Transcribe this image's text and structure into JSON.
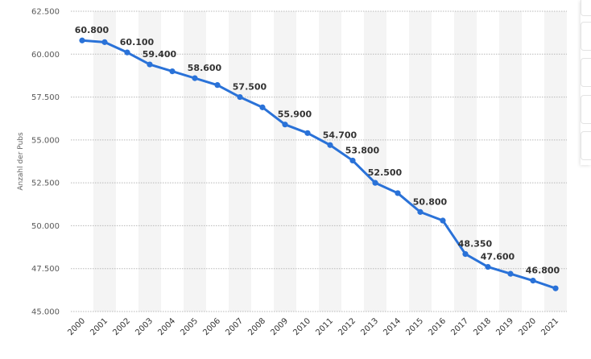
{
  "chart_data": {
    "type": "line",
    "ylabel": "Anzahl der Pubs",
    "xlabel": "",
    "ylim": [
      45000,
      62500
    ],
    "yticks": [
      45000,
      47500,
      50000,
      52500,
      55000,
      57500,
      60000,
      62500
    ],
    "ytick_labels": [
      "45.000",
      "47.500",
      "50.000",
      "52.500",
      "55.000",
      "57.500",
      "60.000",
      "62.500"
    ],
    "categories": [
      "2000",
      "2001",
      "2002",
      "2003",
      "2004",
      "2005",
      "2006",
      "2007",
      "2008",
      "2009",
      "2010",
      "2011",
      "2012",
      "2013",
      "2014",
      "2015",
      "2016",
      "2017",
      "2018",
      "2019",
      "2020",
      "2021"
    ],
    "values": [
      60800,
      60700,
      60100,
      59400,
      59000,
      58600,
      58200,
      57500,
      56900,
      55900,
      55400,
      54700,
      53800,
      52500,
      51900,
      50800,
      50300,
      48350,
      47600,
      47200,
      46800,
      46350
    ],
    "data_labels": [
      "60.800",
      null,
      "60.100",
      "59.400",
      null,
      "58.600",
      null,
      "57.500",
      null,
      "55.900",
      null,
      "54.700",
      "53.800",
      "52.500",
      null,
      "50.800",
      null,
      "48.350",
      "47.600",
      null,
      "46.800",
      null
    ],
    "line_color": "#2a72d8",
    "grid": true,
    "band_color": "#f4f4f4"
  },
  "side_buttons": 5
}
